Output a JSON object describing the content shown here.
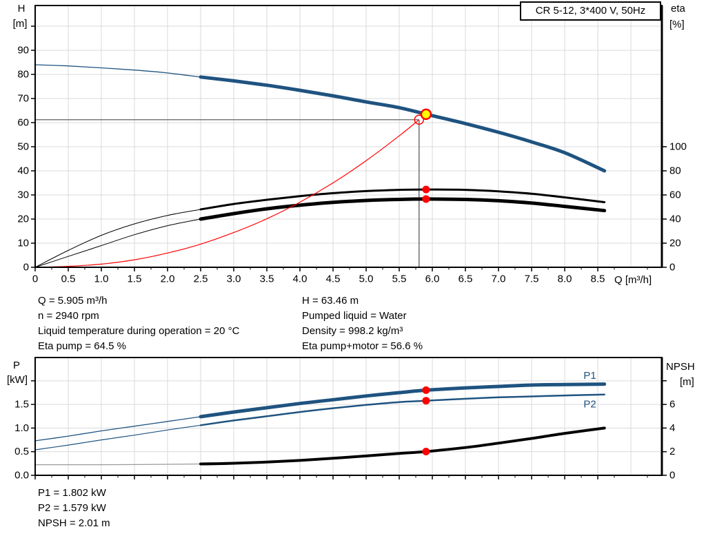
{
  "title": "CR 5-12, 3*400 V, 50Hz",
  "colors": {
    "curve_blue": "#1F5380",
    "red": "#FF0000",
    "yellow": "#FFFF00",
    "black": "#000000",
    "grid": "#D9D9D9",
    "crosshair": "#4D4D4D",
    "npsh_thin": "#999999"
  },
  "axis_labels": {
    "h": "H",
    "h_unit": "[m]",
    "eta": "eta",
    "eta_unit": "[%]",
    "q_unit": "Q [m³/h]",
    "p": "P",
    "p_unit": "[kW]",
    "npsh": "NPSH",
    "npsh_unit": "[m]"
  },
  "duty_panel": {
    "left": [
      "Q = 5.905 m³/h",
      "n = 2940 rpm",
      "Liquid temperature during operation = 20 °C",
      "Eta pump = 64.5 %"
    ],
    "right": [
      "H = 63.46 m",
      "Pumped liquid = Water",
      "Density = 998.2 kg/m³",
      "Eta pump+motor = 56.6 %"
    ]
  },
  "power_panel": [
    "P1 = 1.802 kW",
    "P2 = 1.579 kW",
    "NPSH = 2.01 m"
  ],
  "chart_data": [
    {
      "id": "qh_eta",
      "type": "line",
      "title": "CR 5-12, 3*400 V, 50Hz",
      "xlabel": "Q [m³/h]",
      "ylabel_left": "H [m]",
      "ylabel_right": "eta [%]",
      "xlim": [
        0,
        9.468
      ],
      "ylim_left": [
        0,
        108.57
      ],
      "ylim_right": [
        0,
        217.14
      ],
      "grid": true,
      "x_ticks": {
        "values": [
          0,
          0.5,
          1,
          1.5,
          2,
          2.5,
          3,
          3.5,
          4,
          4.5,
          5,
          5.5,
          6,
          6.5,
          7,
          7.5,
          8,
          8.5
        ],
        "labels": [
          "0",
          "0.5",
          "1.0",
          "1.5",
          "2.0",
          "2.5",
          "3.0",
          "3.5",
          "4.0",
          "4.5",
          "5.0",
          "5.5",
          "6.0",
          "6.5",
          "7.0",
          "7.5",
          "8.0",
          "8.5"
        ],
        "minor_step": 0.25
      },
      "left_ticks": {
        "values": [
          0,
          10,
          20,
          30,
          40,
          50,
          60,
          70,
          80,
          90,
          100
        ],
        "labels": [
          "0",
          "10",
          "20",
          "30",
          "40",
          "50",
          "60",
          "70",
          "80",
          "90",
          ""
        ]
      },
      "right_ticks": {
        "values": [
          0,
          20,
          40,
          60,
          80,
          100
        ],
        "labels": [
          "0",
          "20",
          "40",
          "60",
          "80",
          "100"
        ]
      },
      "crosshair": {
        "q": 5.8,
        "value": 61.2,
        "axis": "left"
      },
      "series": [
        {
          "name": "QH curve",
          "axis": "left",
          "color": "#1F5380",
          "width": 5,
          "thin_until": 2.5,
          "thin_width": 1.3,
          "points": [
            [
              0,
              84
            ],
            [
              0.5,
              83.5
            ],
            [
              1,
              82.7
            ],
            [
              1.5,
              81.8
            ],
            [
              2,
              80.6
            ],
            [
              2.5,
              78.9
            ],
            [
              3,
              77.3
            ],
            [
              3.5,
              75.5
            ],
            [
              4,
              73.4
            ],
            [
              4.5,
              71.1
            ],
            [
              5,
              68.6
            ],
            [
              5.5,
              66.2
            ],
            [
              5.905,
              63.5
            ],
            [
              6.5,
              59.6
            ],
            [
              7,
              56.0
            ],
            [
              7.5,
              52.0
            ],
            [
              8,
              47.5
            ],
            [
              8.6,
              40.0
            ]
          ]
        },
        {
          "name": "Eta pump",
          "axis": "right",
          "color": "#000000",
          "width": 3,
          "thin_until": 2.5,
          "thin_width": 1,
          "points": [
            [
              0,
              0
            ],
            [
              0.5,
              14
            ],
            [
              1,
              26.5
            ],
            [
              1.5,
              36
            ],
            [
              2,
              43
            ],
            [
              2.5,
              48
            ],
            [
              3,
              52.5
            ],
            [
              3.5,
              56
            ],
            [
              4,
              59
            ],
            [
              4.5,
              61.5
            ],
            [
              5,
              63.2
            ],
            [
              5.5,
              64.2
            ],
            [
              5.905,
              64.5
            ],
            [
              6.5,
              64.2
            ],
            [
              7,
              63
            ],
            [
              7.5,
              61
            ],
            [
              8,
              58
            ],
            [
              8.6,
              54
            ]
          ]
        },
        {
          "name": "Eta pump plus motor",
          "axis": "right",
          "color": "#000000",
          "width": 5,
          "thin_until": 2.5,
          "thin_width": 1,
          "points": [
            [
              0,
              0
            ],
            [
              0.5,
              9
            ],
            [
              1,
              18
            ],
            [
              1.5,
              27
            ],
            [
              2,
              34.5
            ],
            [
              2.5,
              40
            ],
            [
              3,
              44.5
            ],
            [
              3.5,
              48.5
            ],
            [
              4,
              51.5
            ],
            [
              4.5,
              53.8
            ],
            [
              5,
              55.4
            ],
            [
              5.5,
              56.3
            ],
            [
              5.905,
              56.6
            ],
            [
              6.5,
              56.3
            ],
            [
              7,
              55.2
            ],
            [
              7.5,
              53.3
            ],
            [
              8,
              50.5
            ],
            [
              8.6,
              47
            ]
          ]
        },
        {
          "name": "System curve",
          "axis": "left",
          "color": "#FF0000",
          "width": 1.2,
          "points": [
            [
              0,
              0
            ],
            [
              0.5,
              0.4
            ],
            [
              1,
              1.3
            ],
            [
              1.5,
              3.1
            ],
            [
              2,
              5.9
            ],
            [
              2.5,
              9.6
            ],
            [
              3,
              14.4
            ],
            [
              3.5,
              20.1
            ],
            [
              4,
              27.0
            ],
            [
              4.5,
              35.0
            ],
            [
              5,
              44.2
            ],
            [
              5.5,
              54.5
            ],
            [
              5.8,
              61.2
            ]
          ]
        }
      ],
      "markers": [
        {
          "q": 5.8,
          "value": 61.2,
          "axis": "left",
          "style": "open-circle",
          "label": "requested duty point"
        },
        {
          "q": 5.905,
          "value": 63.46,
          "axis": "left",
          "style": "operating-point",
          "label": "actual duty point"
        },
        {
          "q": 5.905,
          "value": 64.5,
          "axis": "right",
          "style": "red-dot",
          "label": "eta pump"
        },
        {
          "q": 5.905,
          "value": 56.6,
          "axis": "right",
          "style": "red-dot",
          "label": "eta pump plus motor"
        }
      ]
    },
    {
      "id": "power_npsh",
      "type": "line",
      "title": "",
      "xlabel": "",
      "ylabel_left": "P [kW]",
      "ylabel_right": "NPSH [m]",
      "xlim": [
        0,
        9.468
      ],
      "ylim_left": [
        0,
        2.493
      ],
      "ylim_right": [
        0,
        9.97
      ],
      "grid": true,
      "x_ticks": {
        "values": [
          0,
          0.5,
          1,
          1.5,
          2,
          2.5,
          3,
          3.5,
          4,
          4.5,
          5,
          5.5,
          6,
          6.5,
          7,
          7.5,
          8,
          8.5
        ],
        "labels": [],
        "minor_step": 0.25
      },
      "left_ticks": {
        "values": [
          0,
          0.5,
          1,
          1.5,
          2
        ],
        "labels": [
          "0.0",
          "0.5",
          "1.0",
          "1.5",
          ""
        ]
      },
      "right_ticks": {
        "values": [
          0,
          2,
          4,
          6,
          8
        ],
        "labels": [
          "0",
          "2",
          "4",
          "6",
          ""
        ]
      },
      "series": [
        {
          "name": "P1",
          "axis": "left",
          "color": "#1F5380",
          "width": 5,
          "thin_until": 2.5,
          "thin_width": 1.3,
          "points": [
            [
              0,
              0.73
            ],
            [
              0.5,
              0.83
            ],
            [
              1,
              0.94
            ],
            [
              1.5,
              1.04
            ],
            [
              2,
              1.14
            ],
            [
              2.5,
              1.24
            ],
            [
              3,
              1.34
            ],
            [
              3.5,
              1.43
            ],
            [
              4,
              1.52
            ],
            [
              4.5,
              1.6
            ],
            [
              5,
              1.68
            ],
            [
              5.5,
              1.75
            ],
            [
              5.905,
              1.802
            ],
            [
              6.5,
              1.85
            ],
            [
              7,
              1.88
            ],
            [
              7.5,
              1.91
            ],
            [
              8,
              1.92
            ],
            [
              8.6,
              1.93
            ]
          ]
        },
        {
          "name": "P2",
          "axis": "left",
          "color": "#1F5380",
          "width": 2.5,
          "thin_until": 2.5,
          "thin_width": 1.2,
          "points": [
            [
              0,
              0.54
            ],
            [
              0.5,
              0.64
            ],
            [
              1,
              0.75
            ],
            [
              1.5,
              0.85
            ],
            [
              2,
              0.96
            ],
            [
              2.5,
              1.06
            ],
            [
              3,
              1.16
            ],
            [
              3.5,
              1.25
            ],
            [
              4,
              1.34
            ],
            [
              4.5,
              1.42
            ],
            [
              5,
              1.49
            ],
            [
              5.5,
              1.55
            ],
            [
              5.905,
              1.579
            ],
            [
              6.5,
              1.62
            ],
            [
              7,
              1.65
            ],
            [
              7.5,
              1.67
            ],
            [
              8,
              1.69
            ],
            [
              8.6,
              1.71
            ]
          ]
        },
        {
          "name": "NPSH",
          "axis": "right",
          "color": "#000000",
          "width": 4,
          "thin_until": 2.5,
          "thin_width": 1.2,
          "thin_color": "#999999",
          "points": [
            [
              0,
              0.9
            ],
            [
              0.5,
              0.9
            ],
            [
              1,
              0.9
            ],
            [
              1.5,
              0.91
            ],
            [
              2,
              0.93
            ],
            [
              2.5,
              0.96
            ],
            [
              3,
              1.02
            ],
            [
              3.5,
              1.12
            ],
            [
              4,
              1.26
            ],
            [
              4.5,
              1.44
            ],
            [
              5,
              1.64
            ],
            [
              5.5,
              1.85
            ],
            [
              5.905,
              2.01
            ],
            [
              6.5,
              2.35
            ],
            [
              7,
              2.72
            ],
            [
              7.5,
              3.12
            ],
            [
              8,
              3.55
            ],
            [
              8.6,
              4.0
            ]
          ]
        }
      ],
      "series_labels": [
        {
          "text": "P1",
          "q": 8.38,
          "value": 2.11
        },
        {
          "text": "P2",
          "q": 8.38,
          "value": 1.5
        }
      ],
      "markers": [
        {
          "q": 5.905,
          "value": 1.802,
          "axis": "left",
          "style": "red-dot",
          "label": "P1 value"
        },
        {
          "q": 5.905,
          "value": 1.579,
          "axis": "left",
          "style": "red-dot",
          "label": "P2 value"
        },
        {
          "q": 5.905,
          "value": 2.01,
          "axis": "right",
          "style": "red-dot",
          "label": "NPSH value"
        }
      ]
    }
  ]
}
